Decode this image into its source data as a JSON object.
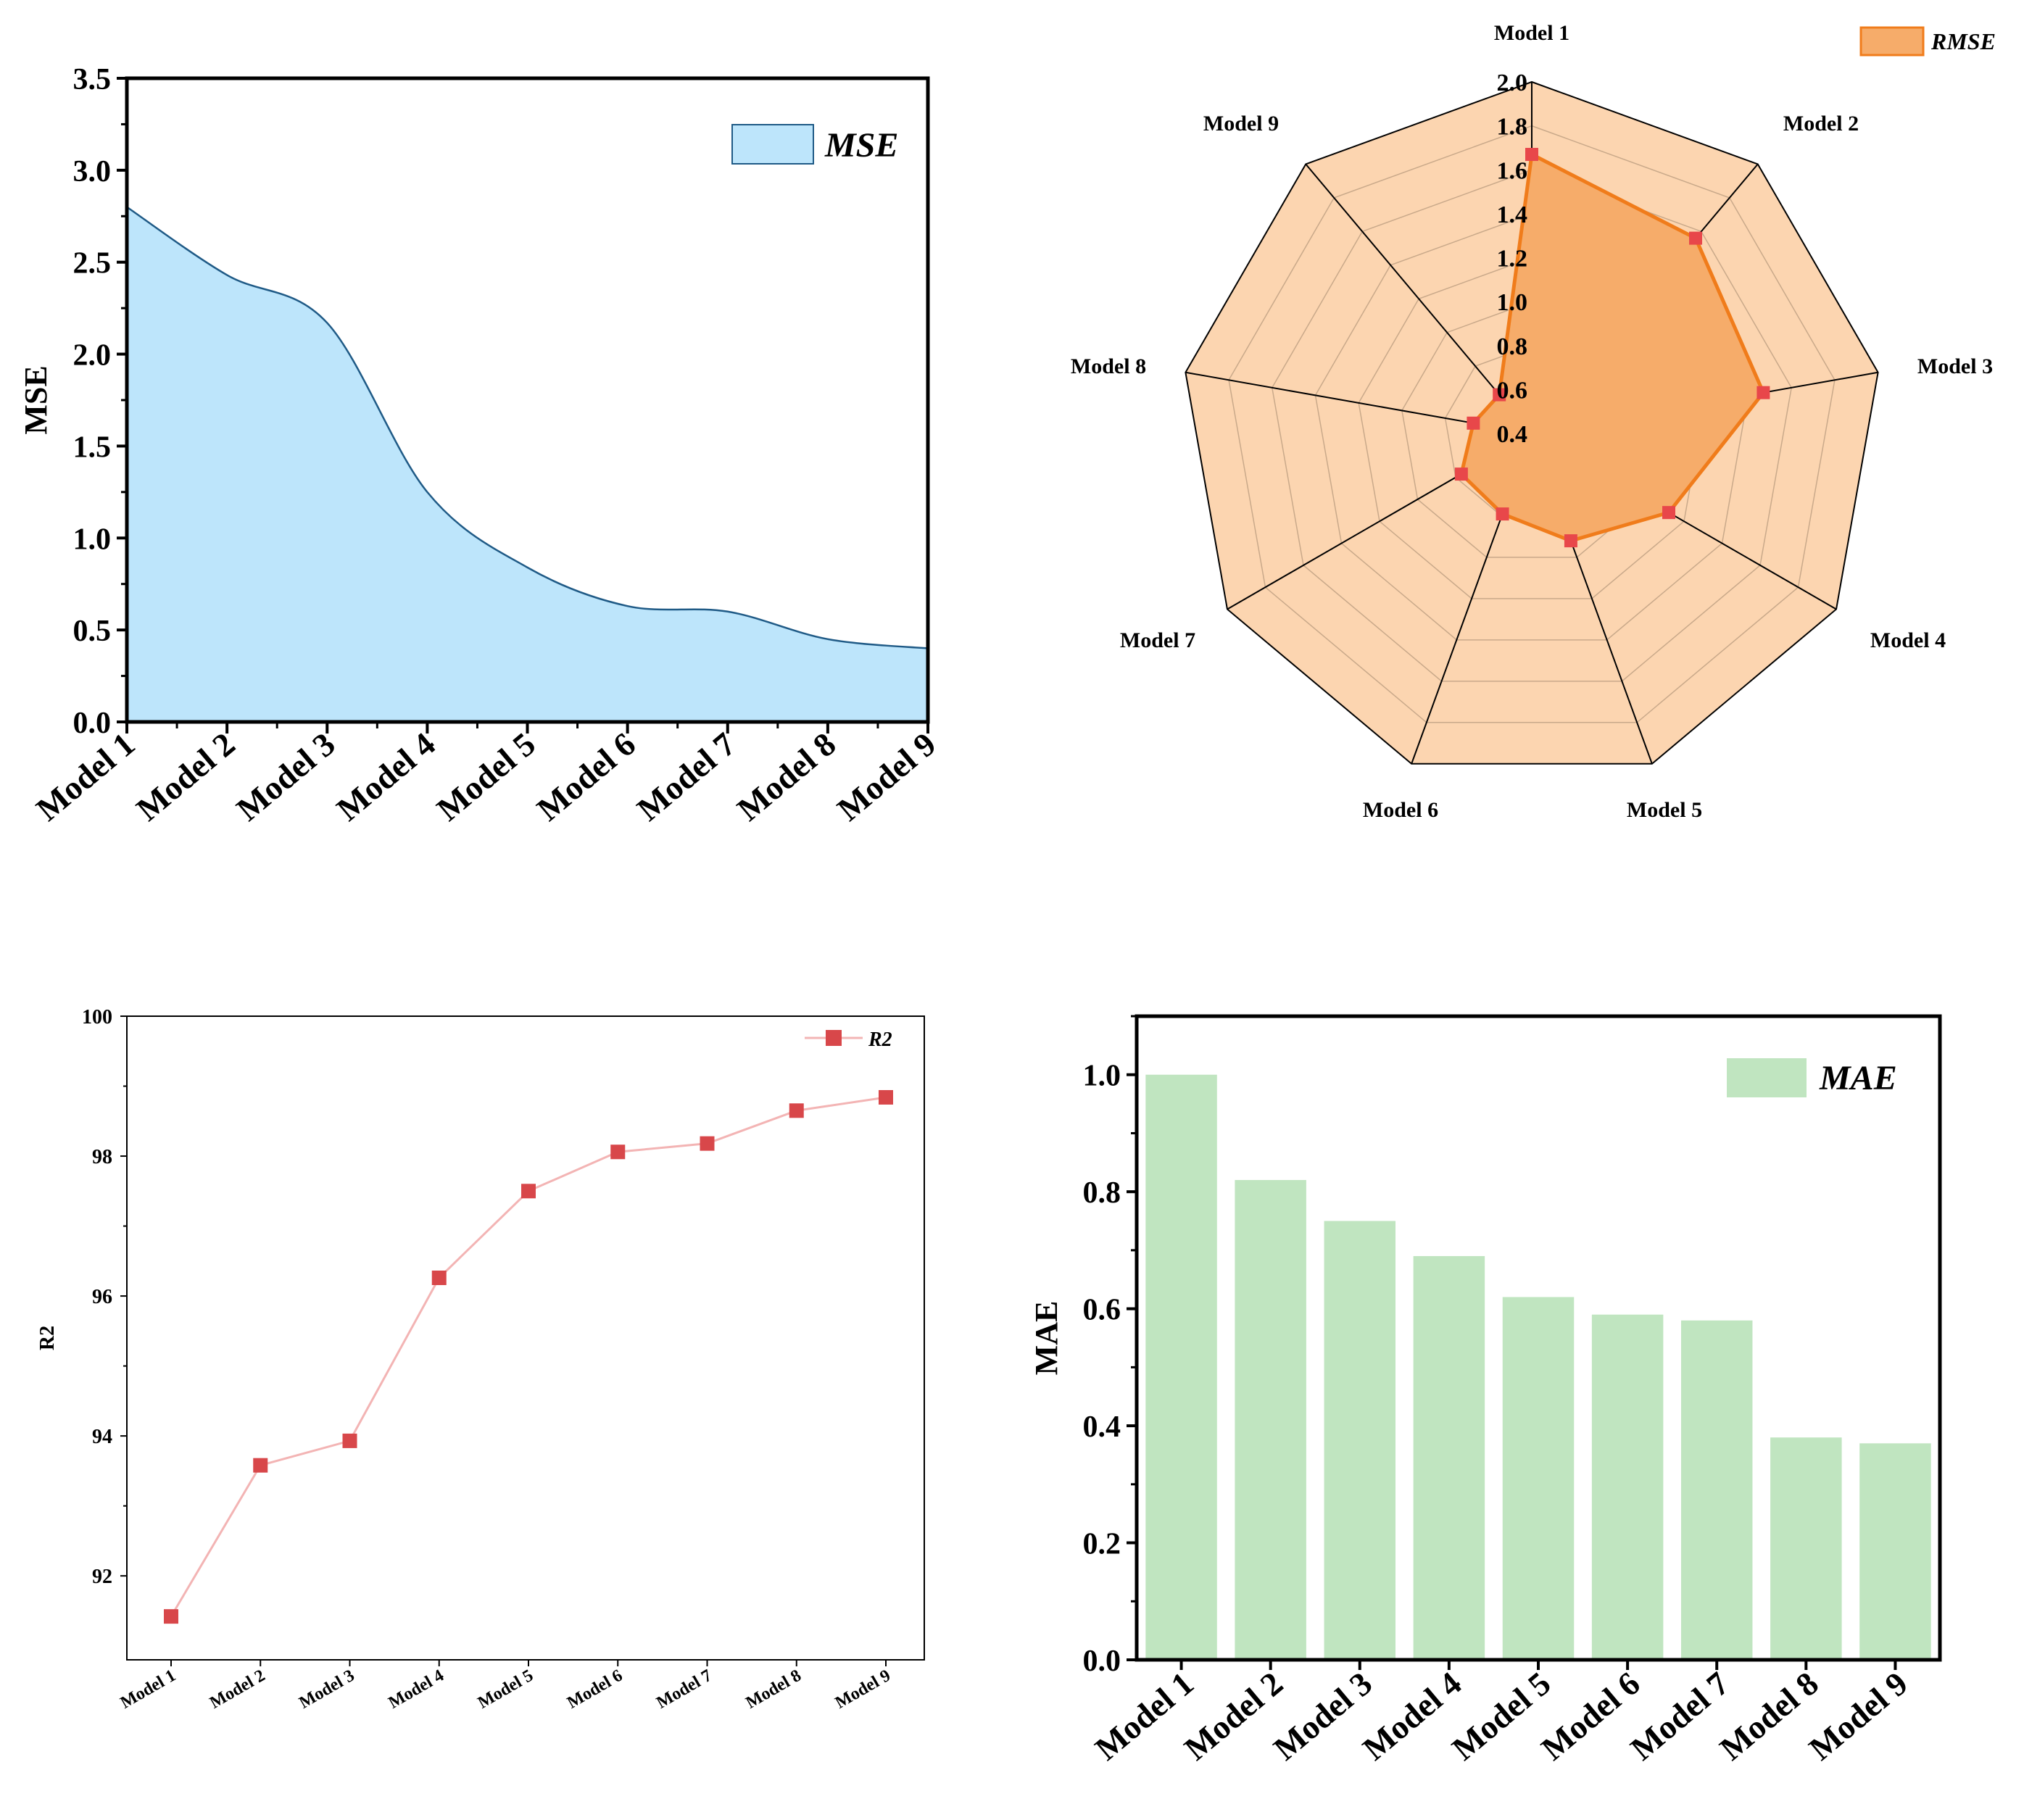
{
  "chart_data": [
    {
      "type": "area",
      "title": "",
      "categories": [
        "Model 1",
        "Model 2",
        "Model 3",
        "Model 4",
        "Model 5",
        "Model 6",
        "Model 7",
        "Model 8",
        "Model 9"
      ],
      "series": [
        {
          "name": "MSE",
          "values": [
            2.8,
            2.43,
            2.17,
            1.25,
            0.84,
            0.63,
            0.6,
            0.45,
            0.4
          ]
        }
      ],
      "xlabel": "",
      "ylabel": "MSE",
      "ylim": [
        0,
        3.5
      ],
      "yticks": [
        "0.0",
        "0.5",
        "1.0",
        "1.5",
        "2.0",
        "2.5",
        "3.0",
        "3.5"
      ],
      "legend": {
        "label": "MSE",
        "placement": "top-right"
      },
      "colors": {
        "fill": "#bde5fb",
        "line": "#1f5a86"
      }
    },
    {
      "type": "radar",
      "title": "",
      "categories": [
        "Model 1",
        "Model 2",
        "Model 3",
        "Model 4",
        "Model 5",
        "Model 6",
        "Model 7",
        "Model 8",
        "Model 9"
      ],
      "series": [
        {
          "name": "RMSE",
          "values": [
            1.67,
            1.56,
            1.47,
            1.12,
            0.92,
            0.79,
            0.77,
            0.67,
            0.63
          ]
        }
      ],
      "rlim": [
        0.4,
        2.0
      ],
      "rticks": [
        "0.4",
        "0.6",
        "0.8",
        "1.0",
        "1.2",
        "1.4",
        "1.6",
        "1.8",
        "2.0"
      ],
      "legend": {
        "label": "RMSE",
        "placement": "top-right"
      },
      "colors": {
        "background": "#fcd5b0",
        "fill": "#f6ac6a",
        "line": "#f07c1b",
        "marker": "#e8474a"
      }
    },
    {
      "type": "line",
      "title": "",
      "categories": [
        "Model 1",
        "Model 2",
        "Model 3",
        "Model 4",
        "Model 5",
        "Model 6",
        "Model 7",
        "Model 8",
        "Model 9"
      ],
      "series": [
        {
          "name": "R2",
          "values": [
            91.42,
            93.58,
            93.93,
            96.26,
            97.5,
            98.06,
            98.18,
            98.65,
            98.84
          ]
        }
      ],
      "xlabel": "",
      "ylabel": "R2",
      "ylim": [
        90.8,
        100
      ],
      "yticks": [
        "92",
        "94",
        "96",
        "98",
        "100"
      ],
      "legend": {
        "label": "R2",
        "placement": "top-right"
      },
      "colors": {
        "line": "#f3b4b4",
        "marker": "#d8474a"
      }
    },
    {
      "type": "bar",
      "title": "",
      "categories": [
        "Model 1",
        "Model 2",
        "Model 3",
        "Model 4",
        "Model 5",
        "Model 6",
        "Model 7",
        "Model 8",
        "Model 9"
      ],
      "series": [
        {
          "name": "MAE",
          "values": [
            1.0,
            0.82,
            0.75,
            0.69,
            0.62,
            0.59,
            0.58,
            0.38,
            0.37
          ]
        }
      ],
      "xlabel": "",
      "ylabel": "MAE",
      "ylim": [
        0,
        1.1
      ],
      "yticks": [
        "0.0",
        "0.2",
        "0.4",
        "0.6",
        "0.8",
        "1.0"
      ],
      "legend": {
        "label": "MAE",
        "placement": "top-right"
      },
      "colors": {
        "bar": "#c0e5c0"
      }
    }
  ]
}
